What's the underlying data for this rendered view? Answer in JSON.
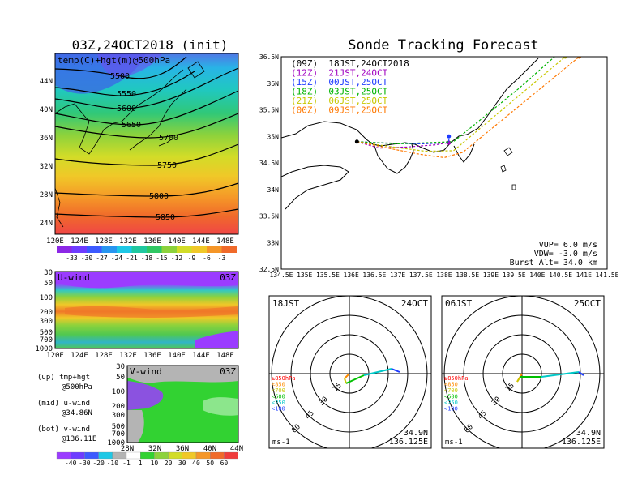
{
  "left_panel": {
    "title": "03Z,24OCT2018 (init)",
    "map_label": "temp(C)+hgt(m)@500hPa",
    "lat_labels": [
      "44N",
      "40N",
      "36N",
      "32N",
      "28N",
      "24N"
    ],
    "lon_labels": [
      "120E",
      "124E",
      "128E",
      "132E",
      "136E",
      "140E",
      "144E",
      "148E"
    ],
    "contour_labels": [
      "5500",
      "5550",
      "5600",
      "5650",
      "5700",
      "5750",
      "5800",
      "5850"
    ],
    "temp_colorbar": [
      "-33",
      "-30",
      "-27",
      "-24",
      "-21",
      "-18",
      "-15",
      "-12",
      "-9",
      "-6",
      "-3"
    ]
  },
  "u_panel": {
    "title": "U-wind",
    "time": "03Z",
    "p_labels": [
      "30",
      "50",
      "100",
      "200",
      "300",
      "500",
      "700",
      "1000"
    ],
    "lon_labels": [
      "120E",
      "124E",
      "128E",
      "132E",
      "136E",
      "140E",
      "144E",
      "148E"
    ]
  },
  "v_panel": {
    "title": "V-wind",
    "time": "03Z",
    "p_labels": [
      "30",
      "50",
      "100",
      "200",
      "300",
      "500",
      "700",
      "1000"
    ],
    "lat_labels": [
      "28N",
      "32N",
      "36N",
      "40N",
      "44N"
    ]
  },
  "legend_text": {
    "up1": "(up) tmp+hgt",
    "up2": "@500hPa",
    "mid1": "(mid) u-wind",
    "mid2": "@34.86N",
    "bot1": "(bot) v-wind",
    "bot2": "@136.11E"
  },
  "wind_colorbar": [
    "-40",
    "-30",
    "-20",
    "-10",
    "-1",
    "1",
    "10",
    "20",
    "30",
    "40",
    "50",
    "60"
  ],
  "right_panel": {
    "title": "Sonde Tracking Forecast",
    "lat_labels": [
      "36.5N",
      "36N",
      "35.5N",
      "35N",
      "34.5N",
      "34N",
      "33.5N",
      "33N",
      "32.5N"
    ],
    "lon_labels": [
      "134.5E",
      "135E",
      "135.5E",
      "136E",
      "136.5E",
      "137E",
      "137.5E",
      "138E",
      "138.5E",
      "139E",
      "139.5E",
      "140E",
      "140.5E",
      "141E",
      "141.5E"
    ],
    "legend": [
      {
        "label": "(09Z)  18JST,24OCT2018",
        "color": "#000000"
      },
      {
        "label": "(12Z)  21JST,24OCT",
        "color": "#a000c0"
      },
      {
        "label": "(15Z)  00JST,25OCT",
        "color": "#1e3cff"
      },
      {
        "label": "(18Z)  03JST,25OCT",
        "color": "#00b400"
      },
      {
        "label": "(21Z)  06JST,25OCT",
        "color": "#c8c800"
      },
      {
        "label": "(00Z)  09JST,25OCT",
        "color": "#ff7800"
      }
    ],
    "params": {
      "vup": "VUP=  6.0 m/s",
      "vdw": "VDW= -3.0 m/s",
      "burst": "Burst Alt= 34.0 km"
    }
  },
  "hodographs": [
    {
      "time": "18JST",
      "date": "24OCT",
      "lat": "34.9N",
      "lon": "136.125E",
      "unit": "ms-1",
      "rings": [
        "15",
        "30",
        "45",
        "60"
      ],
      "levels": [
        {
          "label": "≥850hPa",
          "color": "#ff0000"
        },
        {
          "label": "<850",
          "color": "#ff8c00"
        },
        {
          "label": "<700",
          "color": "#c8c800"
        },
        {
          "label": "<500",
          "color": "#00c000"
        },
        {
          "label": "<250",
          "color": "#00c8c8"
        },
        {
          "label": "<100",
          "color": "#1e3cff"
        }
      ]
    },
    {
      "time": "06JST",
      "date": "25OCT",
      "lat": "34.9N",
      "lon": "136.125E",
      "unit": "ms-1",
      "rings": [
        "15",
        "30",
        "45",
        "60"
      ],
      "levels": [
        {
          "label": "≥850hPa",
          "color": "#ff0000"
        },
        {
          "label": "<850",
          "color": "#ff8c00"
        },
        {
          "label": "<700",
          "color": "#c8c800"
        },
        {
          "label": "<500",
          "color": "#00c000"
        },
        {
          "label": "<250",
          "color": "#00c8c8"
        },
        {
          "label": "<100",
          "color": "#1e3cff"
        }
      ]
    }
  ],
  "chart_data": [
    {
      "type": "heatmap",
      "title": "03Z,24OCT2018 (init)",
      "subtitle": "temp(C)+hgt(m)@500hPa",
      "xlim": [
        120,
        150
      ],
      "ylim": [
        22,
        48
      ],
      "contours": [
        5500,
        5550,
        5600,
        5650,
        5700,
        5750,
        5800,
        5850
      ],
      "colorbar": [
        -33,
        -30,
        -27,
        -24,
        -21,
        -18,
        -15,
        -12,
        -9,
        -6,
        -3
      ]
    },
    {
      "type": "heatmap",
      "title": "U-wind",
      "xlabel": "",
      "xlim": [
        120,
        150
      ],
      "ylim": [
        1000,
        30
      ]
    },
    {
      "type": "heatmap",
      "title": "V-wind",
      "xlim": [
        28,
        44
      ],
      "ylim": [
        1000,
        30
      ],
      "colorbar": [
        -40,
        -30,
        -20,
        -10,
        -1,
        1,
        10,
        20,
        30,
        40,
        50,
        60
      ]
    },
    {
      "type": "line",
      "title": "Sonde Tracking Forecast",
      "xlim": [
        134.5,
        141.5
      ],
      "ylim": [
        32.5,
        36.5
      ],
      "series": [
        {
          "name": "(09Z)  18JST,24OCT2018",
          "x": [
            136.125,
            136.5,
            137.0,
            137.5,
            138.1
          ],
          "y": [
            34.9,
            34.88,
            34.87,
            34.86,
            34.88
          ]
        },
        {
          "name": "(12Z)  21JST,24OCT",
          "x": [
            136.125,
            136.6,
            137.2,
            137.8,
            138.1
          ],
          "y": [
            34.9,
            34.78,
            34.8,
            34.84,
            34.88
          ]
        },
        {
          "name": "(15Z)  00JST,25OCT",
          "x": [
            136.125,
            136.8,
            137.5,
            138.1,
            138.1
          ],
          "y": [
            34.9,
            34.87,
            34.86,
            34.88,
            35.0
          ]
        },
        {
          "name": "(18Z)  03JST,25OCT",
          "x": [
            136.125,
            137.0,
            138.2,
            139.6,
            140.5
          ],
          "y": [
            34.9,
            34.86,
            34.9,
            35.9,
            36.6
          ]
        },
        {
          "name": "(21Z)  06JST,25OCT",
          "x": [
            136.125,
            136.9,
            137.6,
            138.2,
            140.6
          ],
          "y": [
            34.9,
            34.8,
            34.72,
            34.73,
            36.5
          ]
        },
        {
          "name": "(00Z)  09JST,25OCT",
          "x": [
            136.125,
            136.9,
            137.5,
            138.0,
            138.4,
            140.9
          ],
          "y": [
            34.9,
            34.76,
            34.66,
            34.6,
            34.7,
            36.5
          ]
        }
      ]
    }
  ]
}
